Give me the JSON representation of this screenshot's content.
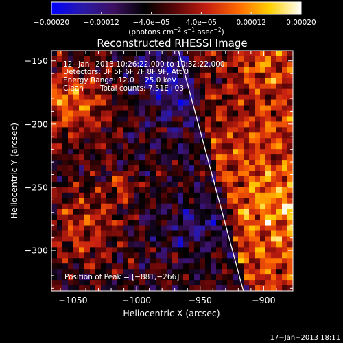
{
  "chart_data": {
    "type": "heatmap",
    "title": "Reconstructed RHESSI Image",
    "xlabel": "Heliocentric X (arcsec)",
    "ylabel": "Heliocentric Y (arcsec)",
    "xlim": [
      -1067,
      -877
    ],
    "ylim": [
      -332,
      -142
    ],
    "x_ticks": [
      -1050,
      -1000,
      -950,
      -900
    ],
    "x_tick_labels": [
      "−1050",
      "−1000",
      "−950",
      "−900"
    ],
    "y_ticks": [
      -150,
      -200,
      -250,
      -300
    ],
    "y_tick_labels": [
      "−150",
      "−200",
      "−250",
      "−300"
    ],
    "colorbar": {
      "range": [
        -0.0002,
        0.0002
      ],
      "ticks": [
        -0.0002,
        -0.00012,
        -4e-05,
        4e-05,
        0.00012,
        0.0002
      ],
      "tick_labels": [
        "−0.00020",
        "−0.00012",
        "−4.0e−05",
        "4.0e−05",
        "0.00012",
        "0.00020"
      ],
      "unit_text": "(photons cm",
      "unit_sup1": "−2",
      "unit_mid": " s",
      "unit_sup2": "−1",
      "unit_mid2": " asec",
      "unit_sup3": "−2",
      "unit_end": ")",
      "colors": [
        "#0000ff",
        "#2a19a8",
        "#3d1060",
        "#000000",
        "#5e0608",
        "#c72010",
        "#ff6a00",
        "#ffd000",
        "#ffffff"
      ]
    },
    "annotations": {
      "time_range": "12−Jan−2013 10:26:22.000 to 10:32:22.000",
      "detectors": "Detectors: 3F 5F 6F 7F 8F 9F, Att 0",
      "energy": "Energy Range: 12.0 − 25.0 keV",
      "method": "Clean",
      "counts": "Total counts: 7.51E+03",
      "peak": "Position of Peak = [−881,−266]"
    },
    "peak": [
      -881,
      -266
    ],
    "limb_line": [
      [
        -967,
        -142
      ],
      [
        -916,
        -332
      ]
    ],
    "footer": "17−Jan−2013 18:11"
  }
}
